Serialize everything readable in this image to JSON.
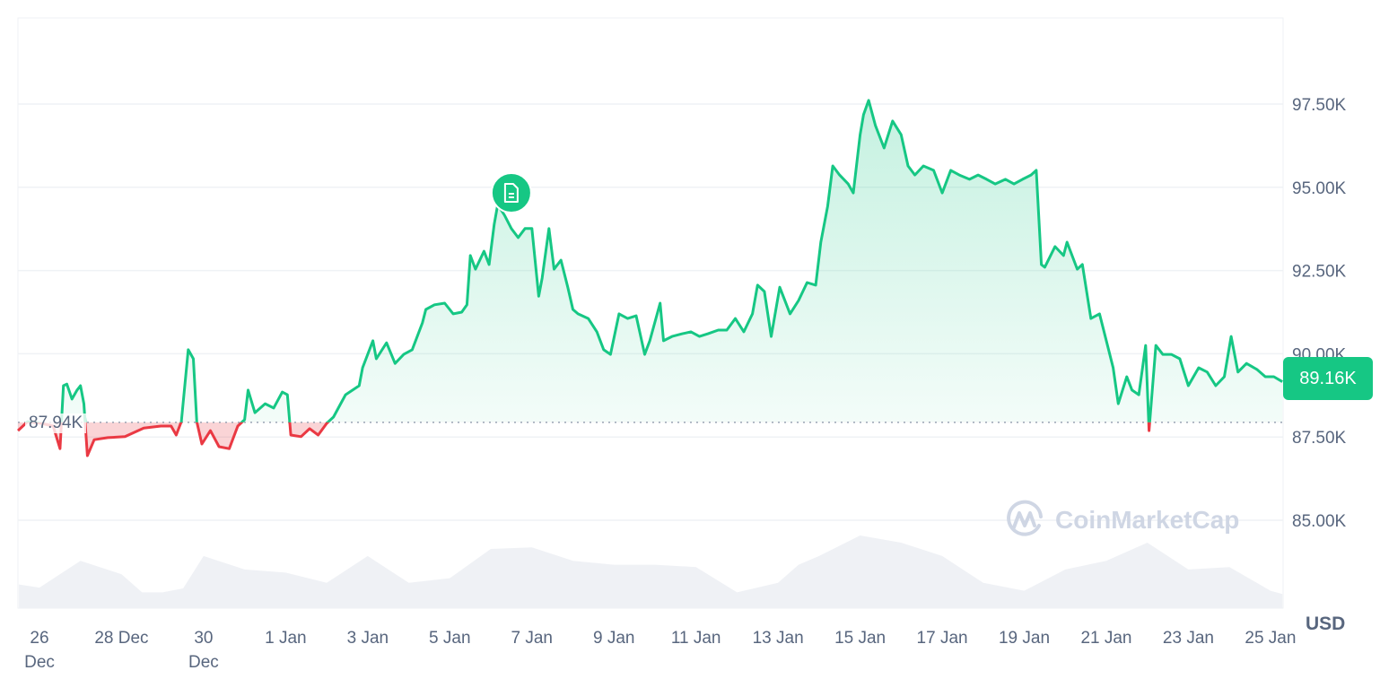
{
  "chart_data": {
    "type": "line",
    "title": "",
    "xlabel": "",
    "ylabel": "",
    "currency": "USD",
    "y_ticks": [
      "85.00K",
      "87.50K",
      "90.00K",
      "92.50K",
      "95.00K",
      "97.50K"
    ],
    "y_tick_values": [
      85,
      87.5,
      90,
      92.5,
      95,
      97.5
    ],
    "ylim": [
      82.5,
      100
    ],
    "y_unit": "thousand USD",
    "x_ticks": [
      {
        "date": "12-26",
        "label": [
          "26",
          "Dec"
        ]
      },
      {
        "date": "12-28",
        "label": [
          "28 Dec"
        ]
      },
      {
        "date": "12-30",
        "label": [
          "30",
          "Dec"
        ]
      },
      {
        "date": "01-01",
        "label": [
          "1 Jan"
        ]
      },
      {
        "date": "01-03",
        "label": [
          "3 Jan"
        ]
      },
      {
        "date": "01-05",
        "label": [
          "5 Jan"
        ]
      },
      {
        "date": "01-07",
        "label": [
          "7 Jan"
        ]
      },
      {
        "date": "01-09",
        "label": [
          "9 Jan"
        ]
      },
      {
        "date": "01-11",
        "label": [
          "11 Jan"
        ]
      },
      {
        "date": "01-13",
        "label": [
          "13 Jan"
        ]
      },
      {
        "date": "01-15",
        "label": [
          "15 Jan"
        ]
      },
      {
        "date": "01-17",
        "label": [
          "17 Jan"
        ]
      },
      {
        "date": "01-19",
        "label": [
          "19 Jan"
        ]
      },
      {
        "date": "01-21",
        "label": [
          "21 Jan"
        ]
      },
      {
        "date": "01-23",
        "label": [
          "23 Jan"
        ]
      },
      {
        "date": "01-25",
        "label": [
          "25 Jan"
        ]
      }
    ],
    "grid": true,
    "baseline": {
      "value": 87.94,
      "label": "87.94K"
    },
    "current": {
      "value": 89.16,
      "label": "89.16K"
    },
    "colors": {
      "up": "#16c784",
      "down": "#ea3943",
      "volume": "#eff1f5",
      "grid": "#eff2f5"
    },
    "annotation_icon": "document-icon",
    "annotation_date": "01-06T12",
    "series": [
      {
        "points": [
          [
            "12-25T11",
            87.69
          ],
          [
            "12-25T17",
            87.96
          ],
          [
            "12-26T01",
            87.91
          ],
          [
            "12-26T08",
            87.83
          ],
          [
            "12-26T12",
            87.15
          ],
          [
            "12-26T14",
            89.04
          ],
          [
            "12-26T16",
            89.09
          ],
          [
            "12-26T19",
            88.64
          ],
          [
            "12-26T22",
            88.91
          ],
          [
            "12-27T00",
            89.04
          ],
          [
            "12-27T02",
            88.5
          ],
          [
            "12-27T04",
            86.94
          ],
          [
            "12-27T08",
            87.42
          ],
          [
            "12-27T16",
            87.48
          ],
          [
            "12-28T02",
            87.51
          ],
          [
            "12-28T13",
            87.77
          ],
          [
            "12-28T23",
            87.83
          ],
          [
            "12-29T05",
            87.83
          ],
          [
            "12-29T08",
            87.56
          ],
          [
            "12-29T11",
            87.96
          ],
          [
            "12-29T15",
            90.12
          ],
          [
            "12-29T18",
            89.85
          ],
          [
            "12-29T20",
            87.96
          ],
          [
            "12-29T23",
            87.29
          ],
          [
            "12-30T04",
            87.69
          ],
          [
            "12-30T09",
            87.21
          ],
          [
            "12-30T15",
            87.15
          ],
          [
            "12-30T20",
            87.83
          ],
          [
            "12-31T00",
            88.02
          ],
          [
            "12-31T02",
            88.91
          ],
          [
            "12-31T06",
            88.23
          ],
          [
            "12-31T12",
            88.5
          ],
          [
            "12-31T17",
            88.37
          ],
          [
            "12-31T22",
            88.85
          ],
          [
            "01-01T01",
            88.77
          ],
          [
            "01-01T03",
            87.56
          ],
          [
            "01-01T09",
            87.51
          ],
          [
            "01-01T14",
            87.75
          ],
          [
            "01-01T19",
            87.56
          ],
          [
            "01-02T00",
            87.91
          ],
          [
            "01-02T04",
            88.1
          ],
          [
            "01-02T11",
            88.77
          ],
          [
            "01-02T19",
            89.04
          ],
          [
            "01-02T21",
            89.58
          ],
          [
            "01-03T03",
            90.39
          ],
          [
            "01-03T05",
            89.85
          ],
          [
            "01-03T11",
            90.33
          ],
          [
            "01-03T16",
            89.71
          ],
          [
            "01-03T21",
            89.98
          ],
          [
            "01-04T02",
            90.12
          ],
          [
            "01-04T08",
            90.93
          ],
          [
            "01-04T10",
            91.33
          ],
          [
            "01-04T15",
            91.47
          ],
          [
            "01-04T21",
            91.52
          ],
          [
            "01-05T02",
            91.2
          ],
          [
            "01-05T07",
            91.25
          ],
          [
            "01-05T10",
            91.47
          ],
          [
            "01-05T12",
            92.95
          ],
          [
            "01-05T15",
            92.54
          ],
          [
            "01-05T20",
            93.08
          ],
          [
            "01-05T23",
            92.68
          ],
          [
            "01-06T02",
            93.89
          ],
          [
            "01-06T04",
            94.48
          ],
          [
            "01-06T08",
            94.16
          ],
          [
            "01-06T12",
            93.76
          ],
          [
            "01-06T16",
            93.49
          ],
          [
            "01-06T20",
            93.76
          ],
          [
            "01-07T00",
            93.76
          ],
          [
            "01-07T04",
            91.73
          ],
          [
            "01-07T06",
            92.27
          ],
          [
            "01-07T10",
            93.76
          ],
          [
            "01-07T13",
            92.54
          ],
          [
            "01-07T17",
            92.81
          ],
          [
            "01-07T21",
            92.0
          ],
          [
            "01-08T00",
            91.33
          ],
          [
            "01-08T03",
            91.2
          ],
          [
            "01-08T09",
            91.06
          ],
          [
            "01-08T14",
            90.66
          ],
          [
            "01-08T18",
            90.12
          ],
          [
            "01-08T22",
            89.98
          ],
          [
            "01-09T03",
            91.2
          ],
          [
            "01-09T08",
            91.06
          ],
          [
            "01-09T13",
            91.14
          ],
          [
            "01-09T18",
            89.98
          ],
          [
            "01-09T21",
            90.39
          ],
          [
            "01-10T03",
            91.52
          ],
          [
            "01-10T05",
            90.39
          ],
          [
            "01-10T10",
            90.52
          ],
          [
            "01-10T16",
            90.6
          ],
          [
            "01-10T21",
            90.66
          ],
          [
            "01-11T02",
            90.52
          ],
          [
            "01-11T07",
            90.6
          ],
          [
            "01-11T13",
            90.71
          ],
          [
            "01-11T18",
            90.71
          ],
          [
            "01-11T23",
            91.06
          ],
          [
            "01-12T04",
            90.66
          ],
          [
            "01-12T09",
            91.2
          ],
          [
            "01-12T12",
            92.06
          ],
          [
            "01-12T16",
            91.87
          ],
          [
            "01-12T20",
            90.52
          ],
          [
            "01-13T01",
            92.0
          ],
          [
            "01-13T07",
            91.2
          ],
          [
            "01-13T12",
            91.6
          ],
          [
            "01-13T17",
            92.14
          ],
          [
            "01-13T22",
            92.06
          ],
          [
            "01-14T01",
            93.35
          ],
          [
            "01-14T05",
            94.43
          ],
          [
            "01-14T08",
            95.64
          ],
          [
            "01-14T12",
            95.37
          ],
          [
            "01-14T17",
            95.1
          ],
          [
            "01-14T20",
            94.83
          ],
          [
            "01-15T00",
            96.58
          ],
          [
            "01-15T02",
            97.18
          ],
          [
            "01-15T05",
            97.61
          ],
          [
            "01-15T09",
            96.85
          ],
          [
            "01-15T14",
            96.18
          ],
          [
            "01-15T19",
            96.99
          ],
          [
            "01-16T00",
            96.58
          ],
          [
            "01-16T04",
            95.64
          ],
          [
            "01-16T08",
            95.37
          ],
          [
            "01-16T13",
            95.64
          ],
          [
            "01-16T19",
            95.51
          ],
          [
            "01-17T00",
            94.83
          ],
          [
            "01-17T05",
            95.51
          ],
          [
            "01-17T10",
            95.37
          ],
          [
            "01-17T16",
            95.24
          ],
          [
            "01-17T21",
            95.37
          ],
          [
            "01-18T02",
            95.24
          ],
          [
            "01-18T07",
            95.1
          ],
          [
            "01-18T13",
            95.24
          ],
          [
            "01-18T18",
            95.1
          ],
          [
            "01-18T23",
            95.24
          ],
          [
            "01-19T04",
            95.37
          ],
          [
            "01-19T07",
            95.51
          ],
          [
            "01-19T10",
            92.68
          ],
          [
            "01-19T12",
            92.6
          ],
          [
            "01-19T18",
            93.22
          ],
          [
            "01-19T23",
            92.95
          ],
          [
            "01-20T01",
            93.35
          ],
          [
            "01-20T07",
            92.54
          ],
          [
            "01-20T10",
            92.68
          ],
          [
            "01-20T15",
            91.06
          ],
          [
            "01-20T20",
            91.2
          ],
          [
            "01-21T00",
            90.39
          ],
          [
            "01-21T04",
            89.58
          ],
          [
            "01-21T07",
            88.5
          ],
          [
            "01-21T12",
            89.31
          ],
          [
            "01-21T15",
            88.91
          ],
          [
            "01-21T19",
            88.77
          ],
          [
            "01-21T23",
            90.25
          ],
          [
            "01-22T01",
            87.69
          ],
          [
            "01-22T05",
            90.25
          ],
          [
            "01-22T09",
            89.98
          ],
          [
            "01-22T14",
            89.98
          ],
          [
            "01-22T19",
            89.85
          ],
          [
            "01-23T00",
            89.04
          ],
          [
            "01-23T06",
            89.58
          ],
          [
            "01-23T11",
            89.45
          ],
          [
            "01-23T16",
            89.04
          ],
          [
            "01-23T21",
            89.31
          ],
          [
            "01-24T01",
            90.52
          ],
          [
            "01-24T05",
            89.45
          ],
          [
            "01-24T10",
            89.71
          ],
          [
            "01-24T16",
            89.53
          ],
          [
            "01-24T21",
            89.31
          ],
          [
            "01-25T02",
            89.31
          ],
          [
            "01-25T07",
            89.16
          ]
        ]
      }
    ],
    "volume_relative": [
      [
        "12-25T12",
        0.3
      ],
      [
        "12-26T00",
        0.26
      ],
      [
        "12-27T00",
        0.6
      ],
      [
        "12-28T00",
        0.43
      ],
      [
        "12-28T12",
        0.2
      ],
      [
        "12-29T00",
        0.2
      ],
      [
        "12-29T12",
        0.25
      ],
      [
        "12-30T00",
        0.66
      ],
      [
        "12-31T00",
        0.49
      ],
      [
        "01-01T00",
        0.45
      ],
      [
        "01-02T00",
        0.32
      ],
      [
        "01-03T00",
        0.66
      ],
      [
        "01-04T00",
        0.32
      ],
      [
        "01-05T00",
        0.38
      ],
      [
        "01-06T00",
        0.75
      ],
      [
        "01-07T00",
        0.77
      ],
      [
        "01-08T00",
        0.6
      ],
      [
        "01-09T00",
        0.55
      ],
      [
        "01-10T00",
        0.55
      ],
      [
        "01-11T00",
        0.52
      ],
      [
        "01-12T00",
        0.2
      ],
      [
        "01-13T00",
        0.32
      ],
      [
        "01-13T12",
        0.55
      ],
      [
        "01-14T00",
        0.66
      ],
      [
        "01-15T00",
        0.92
      ],
      [
        "01-16T00",
        0.83
      ],
      [
        "01-17T00",
        0.66
      ],
      [
        "01-18T00",
        0.32
      ],
      [
        "01-19T00",
        0.22
      ],
      [
        "01-20T00",
        0.49
      ],
      [
        "01-21T00",
        0.6
      ],
      [
        "01-22T00",
        0.83
      ],
      [
        "01-23T00",
        0.49
      ],
      [
        "01-24T00",
        0.52
      ],
      [
        "01-25T00",
        0.22
      ],
      [
        "01-25T07",
        0.18
      ]
    ]
  },
  "watermark": "CoinMarketCap"
}
